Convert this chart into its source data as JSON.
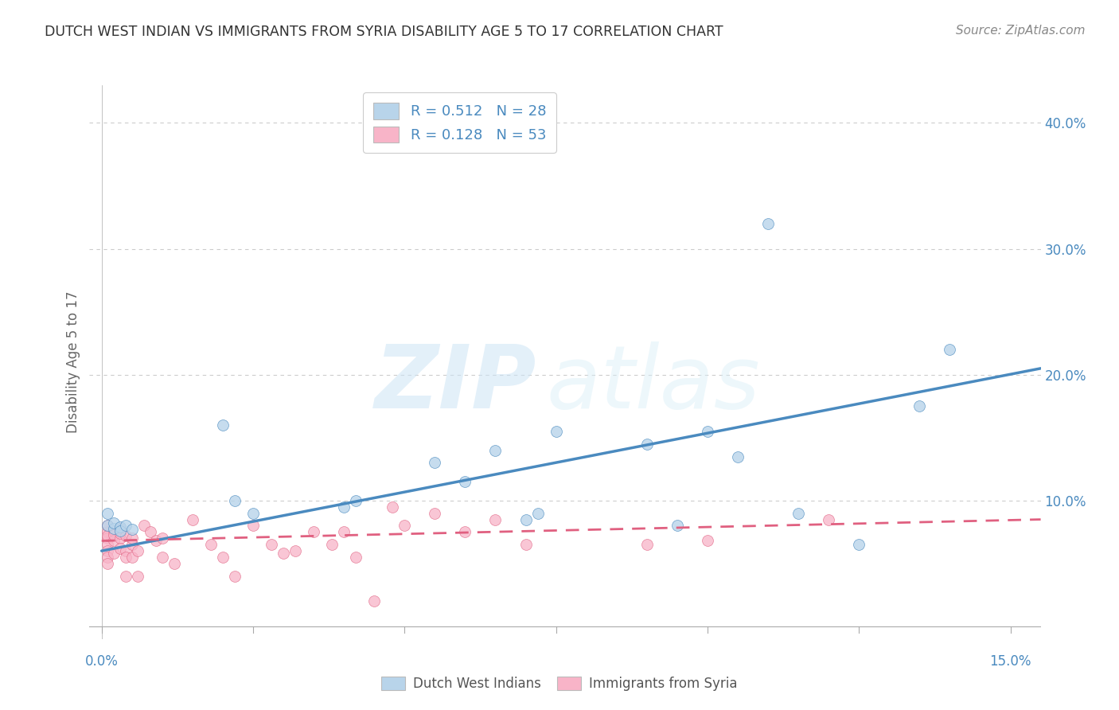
{
  "title": "DUTCH WEST INDIAN VS IMMIGRANTS FROM SYRIA DISABILITY AGE 5 TO 17 CORRELATION CHART",
  "source": "Source: ZipAtlas.com",
  "xlabel": "",
  "ylabel": "Disability Age 5 to 17",
  "xlim": [
    -0.002,
    0.155
  ],
  "ylim": [
    -0.01,
    0.43
  ],
  "ytick_vals": [
    0.1,
    0.2,
    0.3,
    0.4
  ],
  "ytick_labels": [
    "10.0%",
    "20.0%",
    "30.0%",
    "40.0%"
  ],
  "xtick_left_val": 0.0,
  "xtick_left_label": "0.0%",
  "xtick_right_val": 0.15,
  "xtick_right_label": "15.0%",
  "blue_r": 0.512,
  "blue_n": 28,
  "pink_r": 0.128,
  "pink_n": 53,
  "blue_color": "#b8d4ea",
  "pink_color": "#f8b4c8",
  "blue_line_color": "#4a8abf",
  "pink_line_color": "#e06080",
  "watermark_zip": "ZIP",
  "watermark_atlas": "atlas",
  "blue_points_x": [
    0.001,
    0.001,
    0.002,
    0.002,
    0.003,
    0.003,
    0.004,
    0.005,
    0.02,
    0.022,
    0.025,
    0.04,
    0.042,
    0.055,
    0.06,
    0.065,
    0.07,
    0.072,
    0.075,
    0.09,
    0.095,
    0.1,
    0.105,
    0.11,
    0.115,
    0.125,
    0.135,
    0.14
  ],
  "blue_points_y": [
    0.08,
    0.09,
    0.078,
    0.082,
    0.079,
    0.076,
    0.08,
    0.077,
    0.16,
    0.1,
    0.09,
    0.095,
    0.1,
    0.13,
    0.115,
    0.14,
    0.085,
    0.09,
    0.155,
    0.145,
    0.08,
    0.155,
    0.135,
    0.32,
    0.09,
    0.065,
    0.175,
    0.22
  ],
  "pink_points_x": [
    0.001,
    0.001,
    0.001,
    0.001,
    0.001,
    0.001,
    0.001,
    0.001,
    0.002,
    0.002,
    0.002,
    0.002,
    0.003,
    0.003,
    0.003,
    0.003,
    0.004,
    0.004,
    0.004,
    0.004,
    0.005,
    0.005,
    0.005,
    0.006,
    0.006,
    0.007,
    0.008,
    0.009,
    0.01,
    0.01,
    0.012,
    0.015,
    0.018,
    0.02,
    0.022,
    0.025,
    0.028,
    0.03,
    0.032,
    0.035,
    0.038,
    0.04,
    0.042,
    0.045,
    0.048,
    0.05,
    0.055,
    0.06,
    0.065,
    0.07,
    0.09,
    0.1,
    0.12
  ],
  "pink_points_y": [
    0.075,
    0.07,
    0.08,
    0.065,
    0.072,
    0.06,
    0.055,
    0.05,
    0.076,
    0.068,
    0.073,
    0.058,
    0.078,
    0.07,
    0.074,
    0.062,
    0.072,
    0.06,
    0.055,
    0.04,
    0.065,
    0.07,
    0.055,
    0.04,
    0.06,
    0.08,
    0.075,
    0.068,
    0.07,
    0.055,
    0.05,
    0.085,
    0.065,
    0.055,
    0.04,
    0.08,
    0.065,
    0.058,
    0.06,
    0.075,
    0.065,
    0.075,
    0.055,
    0.02,
    0.095,
    0.08,
    0.09,
    0.075,
    0.085,
    0.065,
    0.065,
    0.068,
    0.085
  ],
  "blue_trendline_x": [
    0.0,
    0.155
  ],
  "blue_trendline_y": [
    0.06,
    0.205
  ],
  "pink_trendline_x": [
    0.0,
    0.155
  ],
  "pink_trendline_y": [
    0.068,
    0.085
  ],
  "grid_dashes": [
    4,
    4
  ],
  "marker_size": 100,
  "background_color": "#ffffff",
  "grid_color": "#cccccc",
  "tick_color": "#4a8abf",
  "ylabel_color": "#666666",
  "border_color": "#aaaaaa"
}
